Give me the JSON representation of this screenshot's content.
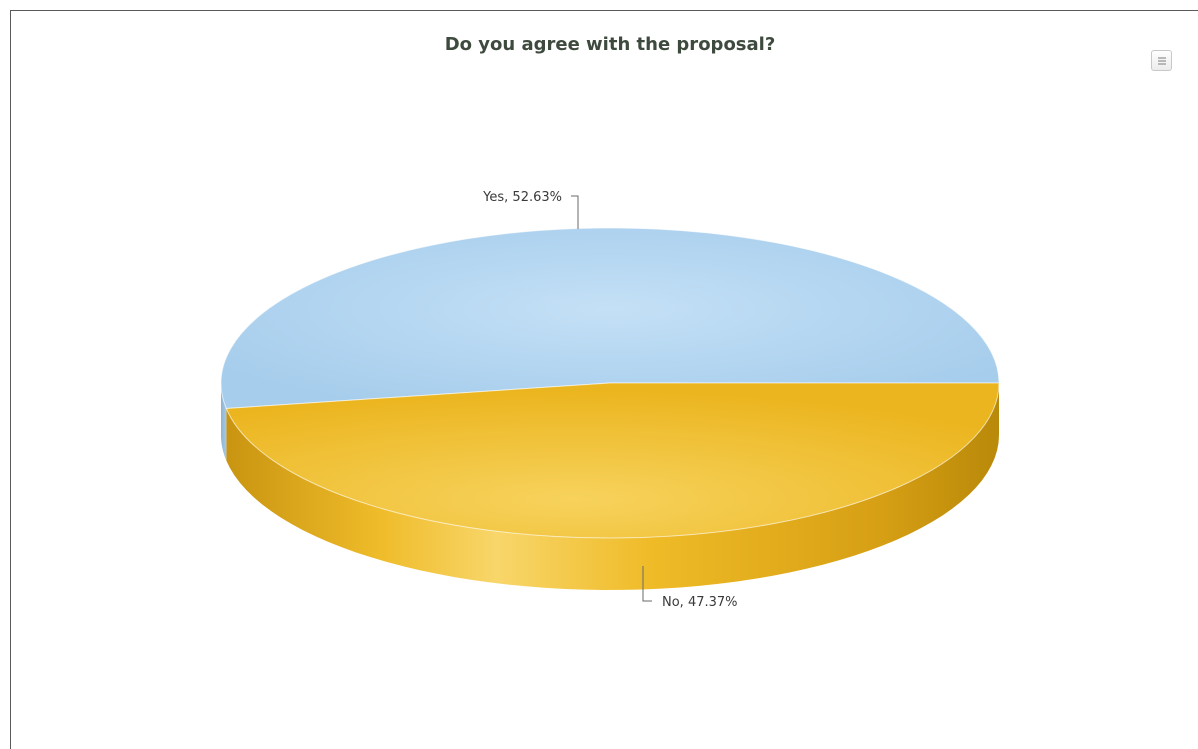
{
  "chart_data": {
    "type": "pie",
    "title": "Do you agree with the proposal?",
    "categories": [
      "Yes",
      "No"
    ],
    "values": [
      52.63,
      47.37
    ],
    "labels": [
      "Yes, 52.63%",
      "No, 47.37%"
    ],
    "colors": {
      "Yes": "#b3d5ef",
      "No": "#f3c231"
    },
    "three_d": true,
    "legend": "none"
  },
  "toolbar": {
    "menu_icon": "hamburger-menu-icon"
  }
}
